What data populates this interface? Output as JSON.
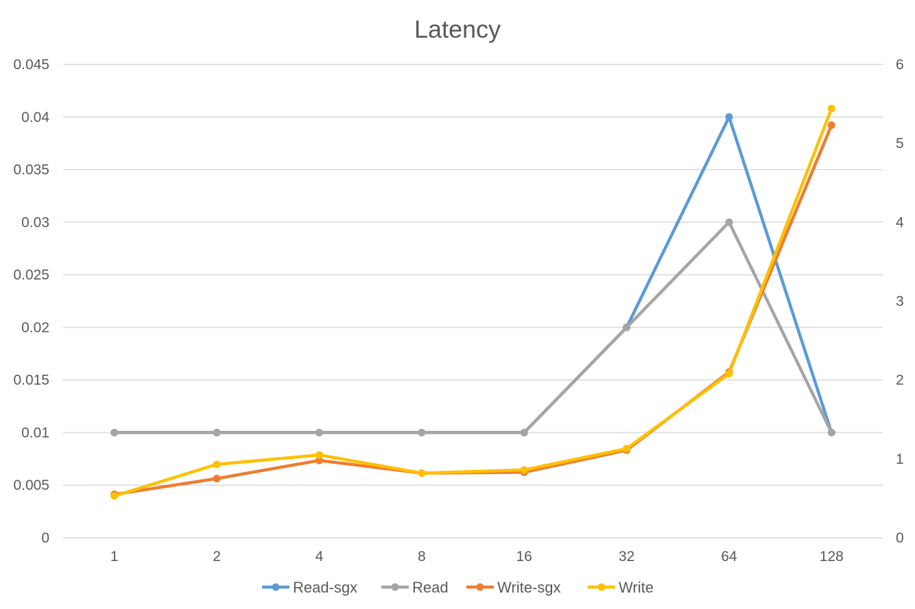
{
  "chart_data": {
    "type": "line",
    "title": "Latency",
    "categories": [
      "1",
      "2",
      "4",
      "8",
      "16",
      "32",
      "64",
      "128"
    ],
    "y_left": {
      "min": 0,
      "max": 0.045,
      "ticks": [
        "0",
        "0.005",
        "0.01",
        "0.015",
        "0.02",
        "0.025",
        "0.03",
        "0.035",
        "0.04",
        "0.045"
      ]
    },
    "y_right": {
      "min": 0,
      "max": 6,
      "ticks": [
        "0",
        "1",
        "2",
        "3",
        "4",
        "5",
        "6"
      ]
    },
    "grid": true,
    "legend_position": "bottom",
    "series": [
      {
        "name": "Read-sgx",
        "axis": "left",
        "color": "#5b9bd5",
        "values": [
          0.01,
          0.01,
          0.01,
          0.01,
          0.01,
          0.02,
          0.04,
          0.01
        ]
      },
      {
        "name": "Read",
        "axis": "left",
        "color": "#a5a5a5",
        "values": [
          0.01,
          0.01,
          0.01,
          0.01,
          0.01,
          0.02,
          0.03,
          0.01
        ]
      },
      {
        "name": "Write-sgx",
        "axis": "right",
        "color": "#ed7d31",
        "values": [
          0.55,
          0.75,
          0.98,
          0.82,
          0.83,
          1.11,
          2.1,
          5.23
        ]
      },
      {
        "name": "Write",
        "axis": "right",
        "color": "#ffc000",
        "values": [
          0.53,
          0.93,
          1.05,
          0.82,
          0.86,
          1.13,
          2.08,
          5.44
        ]
      }
    ]
  }
}
